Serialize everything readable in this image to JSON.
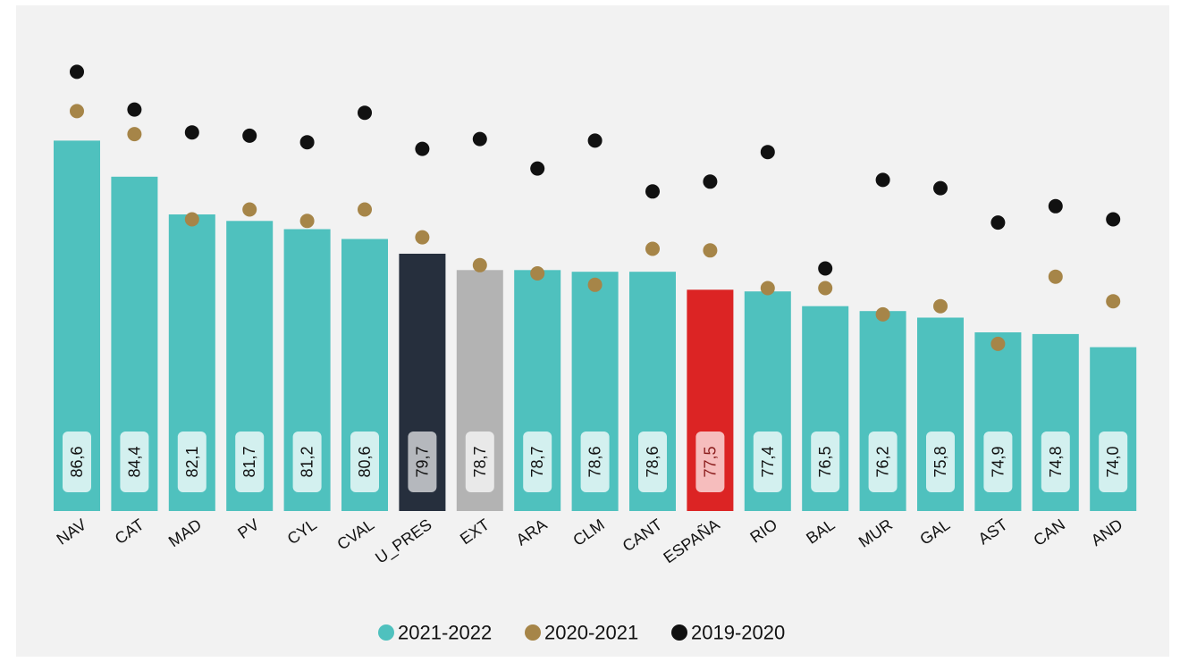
{
  "chart_data": {
    "type": "bar",
    "categories": [
      "NAV",
      "CAT",
      "MAD",
      "PV",
      "CYL",
      "CVAL",
      "U_PRES",
      "EXT",
      "ARA",
      "CLM",
      "CANT",
      "ESPAÑA",
      "RIO",
      "BAL",
      "MUR",
      "GAL",
      "AST",
      "CAN",
      "AND"
    ],
    "value_labels": [
      "86,6",
      "84,4",
      "82,1",
      "81,7",
      "81,2",
      "80,6",
      "79,7",
      "78,7",
      "78,7",
      "78,6",
      "78,6",
      "77,5",
      "77,4",
      "76,5",
      "76,2",
      "75,8",
      "74,9",
      "74,8",
      "74,0"
    ],
    "series": [
      {
        "name": "2021-2022",
        "kind": "bar",
        "color": "#4fc1be",
        "values": [
          86.6,
          84.4,
          82.1,
          81.7,
          81.2,
          80.6,
          79.7,
          78.7,
          78.7,
          78.6,
          78.6,
          77.5,
          77.4,
          76.5,
          76.2,
          75.8,
          74.9,
          74.8,
          74.0
        ]
      },
      {
        "name": "2020-2021",
        "kind": "dot",
        "color": "#a68548",
        "values": [
          88.4,
          87.0,
          81.8,
          82.4,
          81.7,
          82.4,
          80.7,
          79.0,
          78.5,
          77.8,
          80.0,
          79.9,
          77.6,
          77.6,
          76.0,
          76.5,
          74.2,
          78.3,
          76.8
        ]
      },
      {
        "name": "2019-2020",
        "kind": "dot",
        "color": "#111111",
        "values": [
          90.8,
          88.5,
          87.1,
          86.9,
          86.5,
          88.3,
          86.1,
          86.7,
          84.9,
          86.6,
          83.5,
          84.1,
          85.9,
          78.8,
          84.2,
          83.7,
          81.6,
          82.6,
          81.8
        ]
      }
    ],
    "bar_highlights": {
      "U_PRES": "#262f3d",
      "EXT": "#b3b3b3",
      "ESPAÑA": "#dc2424"
    },
    "label_box_colors": {
      "default": "#d3f0ef",
      "U_PRES": "#b5b8bd",
      "EXT": "#e9e9e9",
      "ESPAÑA": "#f6bdbd"
    },
    "ylim": [
      64,
      93
    ],
    "grid": false,
    "legend_position": "bottom-center",
    "xlabel": "",
    "ylabel": "",
    "title": "",
    "background": "#f2f2f2"
  }
}
